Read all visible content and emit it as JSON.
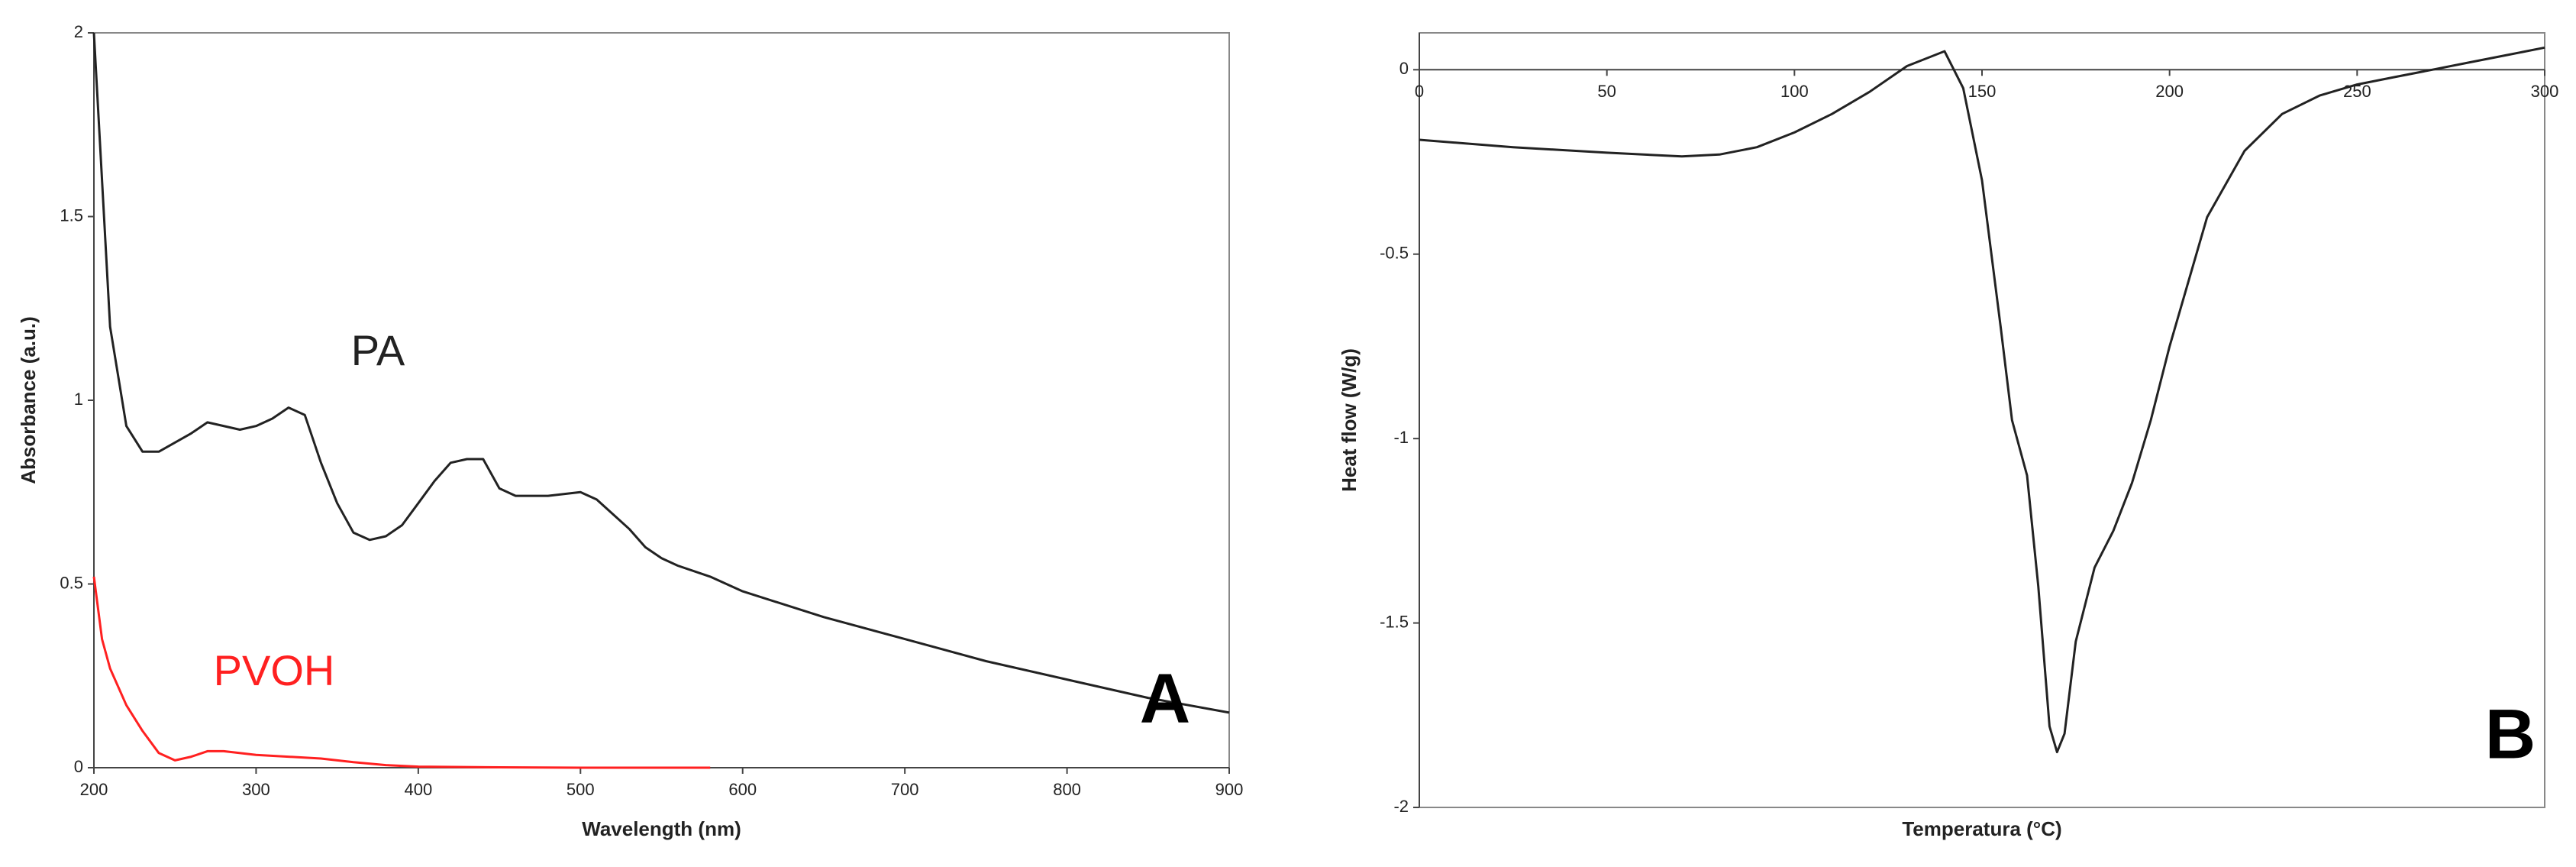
{
  "chart_data": [
    {
      "type": "line",
      "panel_label": "A",
      "x_label": "Wavelength (nm)",
      "y_label": "Absorbance (a.u.)",
      "xlim": [
        200,
        900
      ],
      "ylim": [
        0,
        2
      ],
      "xticks": [
        200,
        300,
        400,
        500,
        600,
        700,
        800,
        900
      ],
      "yticks": [
        0,
        0.5,
        1,
        1.5,
        2
      ],
      "series": [
        {
          "name": "PA",
          "color": "#222222",
          "x": [
            200,
            205,
            210,
            220,
            230,
            240,
            260,
            270,
            290,
            300,
            310,
            320,
            330,
            340,
            350,
            360,
            370,
            380,
            390,
            400,
            410,
            420,
            430,
            440,
            450,
            460,
            480,
            500,
            510,
            520,
            530,
            540,
            550,
            560,
            580,
            600,
            650,
            700,
            750,
            800,
            850,
            900
          ],
          "values": [
            2.0,
            1.6,
            1.2,
            0.93,
            0.86,
            0.86,
            0.91,
            0.94,
            0.92,
            0.93,
            0.95,
            0.98,
            0.96,
            0.83,
            0.72,
            0.64,
            0.62,
            0.63,
            0.66,
            0.72,
            0.78,
            0.83,
            0.84,
            0.84,
            0.76,
            0.74,
            0.74,
            0.75,
            0.73,
            0.69,
            0.65,
            0.6,
            0.57,
            0.55,
            0.52,
            0.48,
            0.41,
            0.35,
            0.29,
            0.24,
            0.19,
            0.15
          ]
        },
        {
          "name": "PVOH",
          "color": "#ff2020",
          "x": [
            200,
            205,
            210,
            220,
            230,
            240,
            250,
            260,
            270,
            280,
            300,
            340,
            360,
            380,
            400,
            450,
            500,
            580
          ],
          "values": [
            0.52,
            0.35,
            0.27,
            0.17,
            0.1,
            0.04,
            0.02,
            0.03,
            0.045,
            0.045,
            0.035,
            0.025,
            0.015,
            0.007,
            0.003,
            0.001,
            0,
            0
          ]
        }
      ]
    },
    {
      "type": "line",
      "panel_label": "B",
      "x_label": "Temperatura (°C)",
      "y_label": "Heat flow (W/g)",
      "xlim": [
        0,
        300
      ],
      "ylim": [
        -2,
        0.1
      ],
      "xticks": [
        0,
        50,
        100,
        150,
        200,
        250,
        300
      ],
      "yticks": [
        -2,
        -1.5,
        -1,
        -0.5,
        0
      ],
      "series": [
        {
          "color": "#222222",
          "x": [
            0,
            25,
            50,
            70,
            80,
            90,
            100,
            110,
            120,
            130,
            140,
            145,
            150,
            155,
            158,
            162,
            165,
            168,
            170,
            172,
            175,
            180,
            185,
            190,
            195,
            200,
            210,
            220,
            230,
            240,
            250,
            260,
            270,
            280,
            290,
            300
          ],
          "values": [
            -0.19,
            -0.21,
            -0.225,
            -0.235,
            -0.23,
            -0.21,
            -0.17,
            -0.12,
            -0.06,
            0.01,
            0.05,
            -0.05,
            -0.3,
            -0.7,
            -0.95,
            -1.1,
            -1.4,
            -1.78,
            -1.85,
            -1.8,
            -1.55,
            -1.35,
            -1.25,
            -1.12,
            -0.95,
            -0.75,
            -0.4,
            -0.22,
            -0.12,
            -0.07,
            -0.04,
            -0.02,
            0.0,
            0.02,
            0.04,
            0.06
          ]
        }
      ]
    }
  ]
}
